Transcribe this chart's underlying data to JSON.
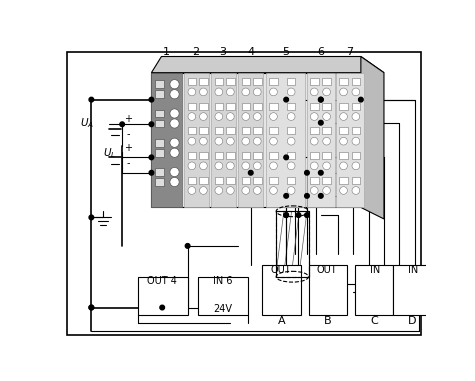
{
  "bg": "#ffffff",
  "lc": "#000000",
  "slot_nums": [
    "1",
    "2",
    "3",
    "4",
    "5",
    "6",
    "7"
  ],
  "bottom_labels_abcd": [
    "A",
    "B",
    "C",
    "D"
  ],
  "slot1_fill": "#888888",
  "slot_light": "#d8d8d8",
  "slot_lighter": "#eeeeee",
  "backplane_fill": "#d0d0d0",
  "top_fill": "#bbbbbb"
}
